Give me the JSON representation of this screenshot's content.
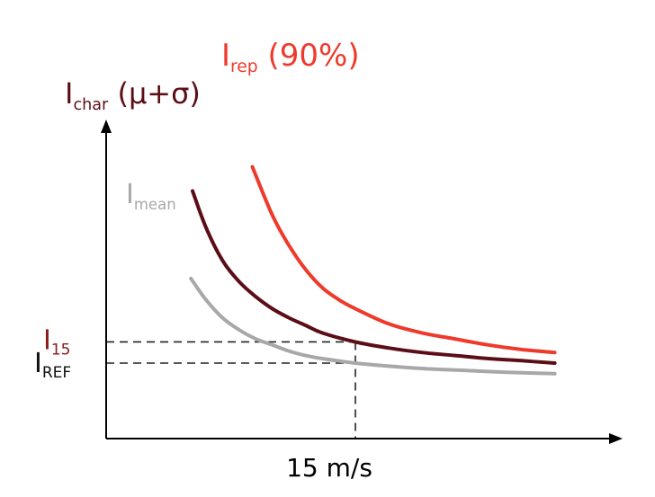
{
  "chart_data": {
    "type": "line",
    "title": "",
    "xlabel": "",
    "ylabel": "",
    "x_tick": "15 m/s",
    "y_ticks": [
      {
        "main": "I",
        "sub": "15",
        "color": "#8b1a1a"
      },
      {
        "main": "I",
        "sub": "REF",
        "color": "#111111"
      }
    ],
    "series": [
      {
        "label_main": "I",
        "label_sub": "rep",
        "label_suffix": " (90%)",
        "color": "#ee3a2c",
        "x": [
          8.8,
          10,
          11,
          12,
          13,
          14,
          15,
          17,
          19,
          21,
          23,
          25,
          27
        ],
        "y": [
          0.9,
          0.74,
          0.64,
          0.56,
          0.5,
          0.46,
          0.43,
          0.38,
          0.35,
          0.33,
          0.31,
          0.295,
          0.285
        ]
      },
      {
        "label_main": "I",
        "label_sub": "char",
        "label_suffix": " (μ+σ)",
        "color": "#5b0e17",
        "x": [
          5.2,
          6,
          7,
          8,
          9,
          10,
          11,
          12,
          13,
          15,
          17,
          19,
          21,
          23,
          25,
          27
        ],
        "y": [
          0.82,
          0.7,
          0.59,
          0.52,
          0.47,
          0.43,
          0.4,
          0.375,
          0.35,
          0.32,
          0.3,
          0.285,
          0.275,
          0.265,
          0.258,
          0.25
        ]
      },
      {
        "label_main": "I",
        "label_sub": "mean",
        "label_suffix": "",
        "color": "#a8a8a8",
        "x": [
          5.1,
          6,
          7,
          8,
          9,
          10,
          11,
          12,
          13,
          15,
          17,
          19,
          21,
          23,
          25,
          27
        ],
        "y": [
          0.53,
          0.46,
          0.4,
          0.36,
          0.33,
          0.31,
          0.29,
          0.275,
          0.265,
          0.25,
          0.24,
          0.232,
          0.227,
          0.222,
          0.218,
          0.215
        ]
      }
    ],
    "reference_lines": {
      "x": 15,
      "y_i15": 0.32,
      "y_iref": 0.25
    },
    "xlim": [
      0,
      30
    ],
    "ylim": [
      0,
      1.0
    ]
  }
}
